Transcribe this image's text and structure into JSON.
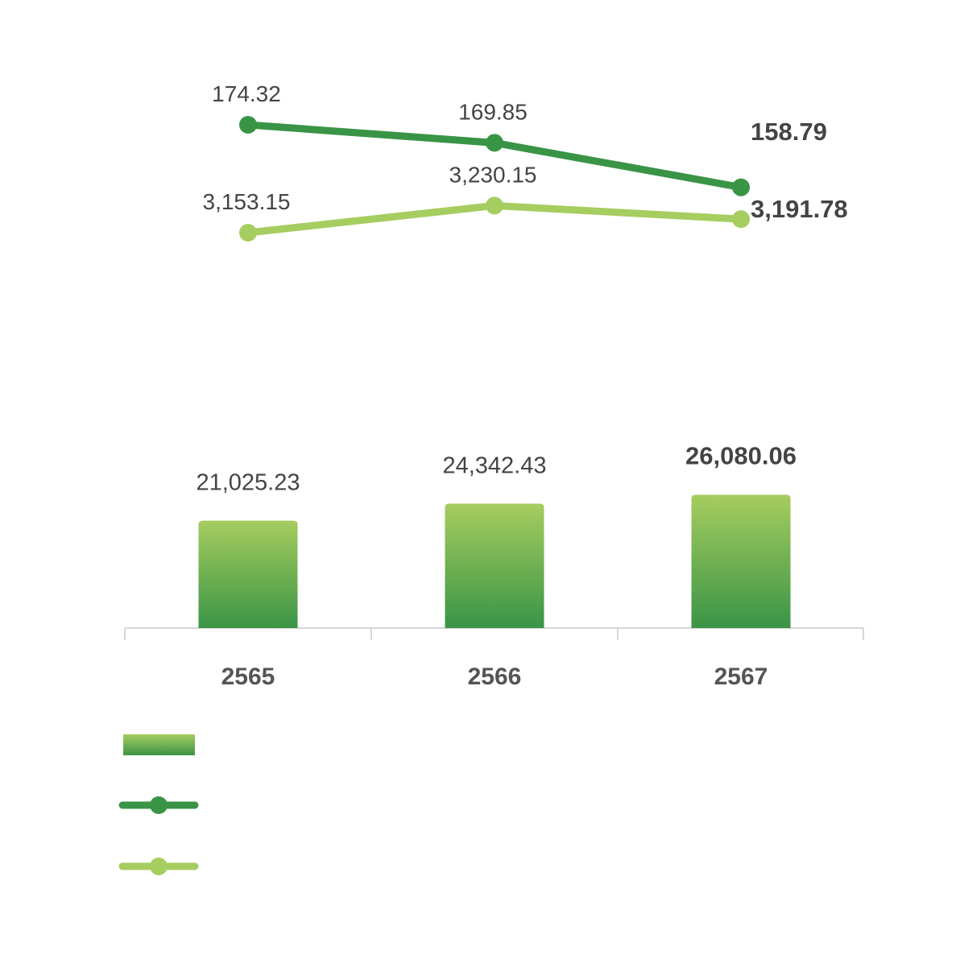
{
  "chart_data": {
    "type": "bar",
    "categories": [
      "2565",
      "2566",
      "2567"
    ],
    "bar_series": {
      "values": [
        21025.23,
        24342.43,
        26080.06
      ],
      "labels": [
        "21,025.23",
        "24,342.43",
        "26,080.06"
      ],
      "gradient_top": "#a6cd5f",
      "gradient_bottom": "#3a9446"
    },
    "line_series": [
      {
        "values": [
          174.32,
          169.85,
          158.79
        ],
        "labels": [
          "174.32",
          "169.85",
          "158.79"
        ],
        "color": "#3a9446"
      },
      {
        "values": [
          3153.15,
          3230.15,
          3191.78
        ],
        "labels": [
          "3,153.15",
          "3,230.15",
          "3,191.78"
        ],
        "color": "#a6cd5f"
      }
    ],
    "highlight_last_label": true,
    "text_color": "#444444",
    "axis_color": "#d6d6d6",
    "legend": {
      "placement": "bottom-left",
      "entries": [
        {
          "kind": "bar",
          "label": ""
        },
        {
          "kind": "line",
          "label": ""
        },
        {
          "kind": "line",
          "label": ""
        }
      ]
    }
  }
}
